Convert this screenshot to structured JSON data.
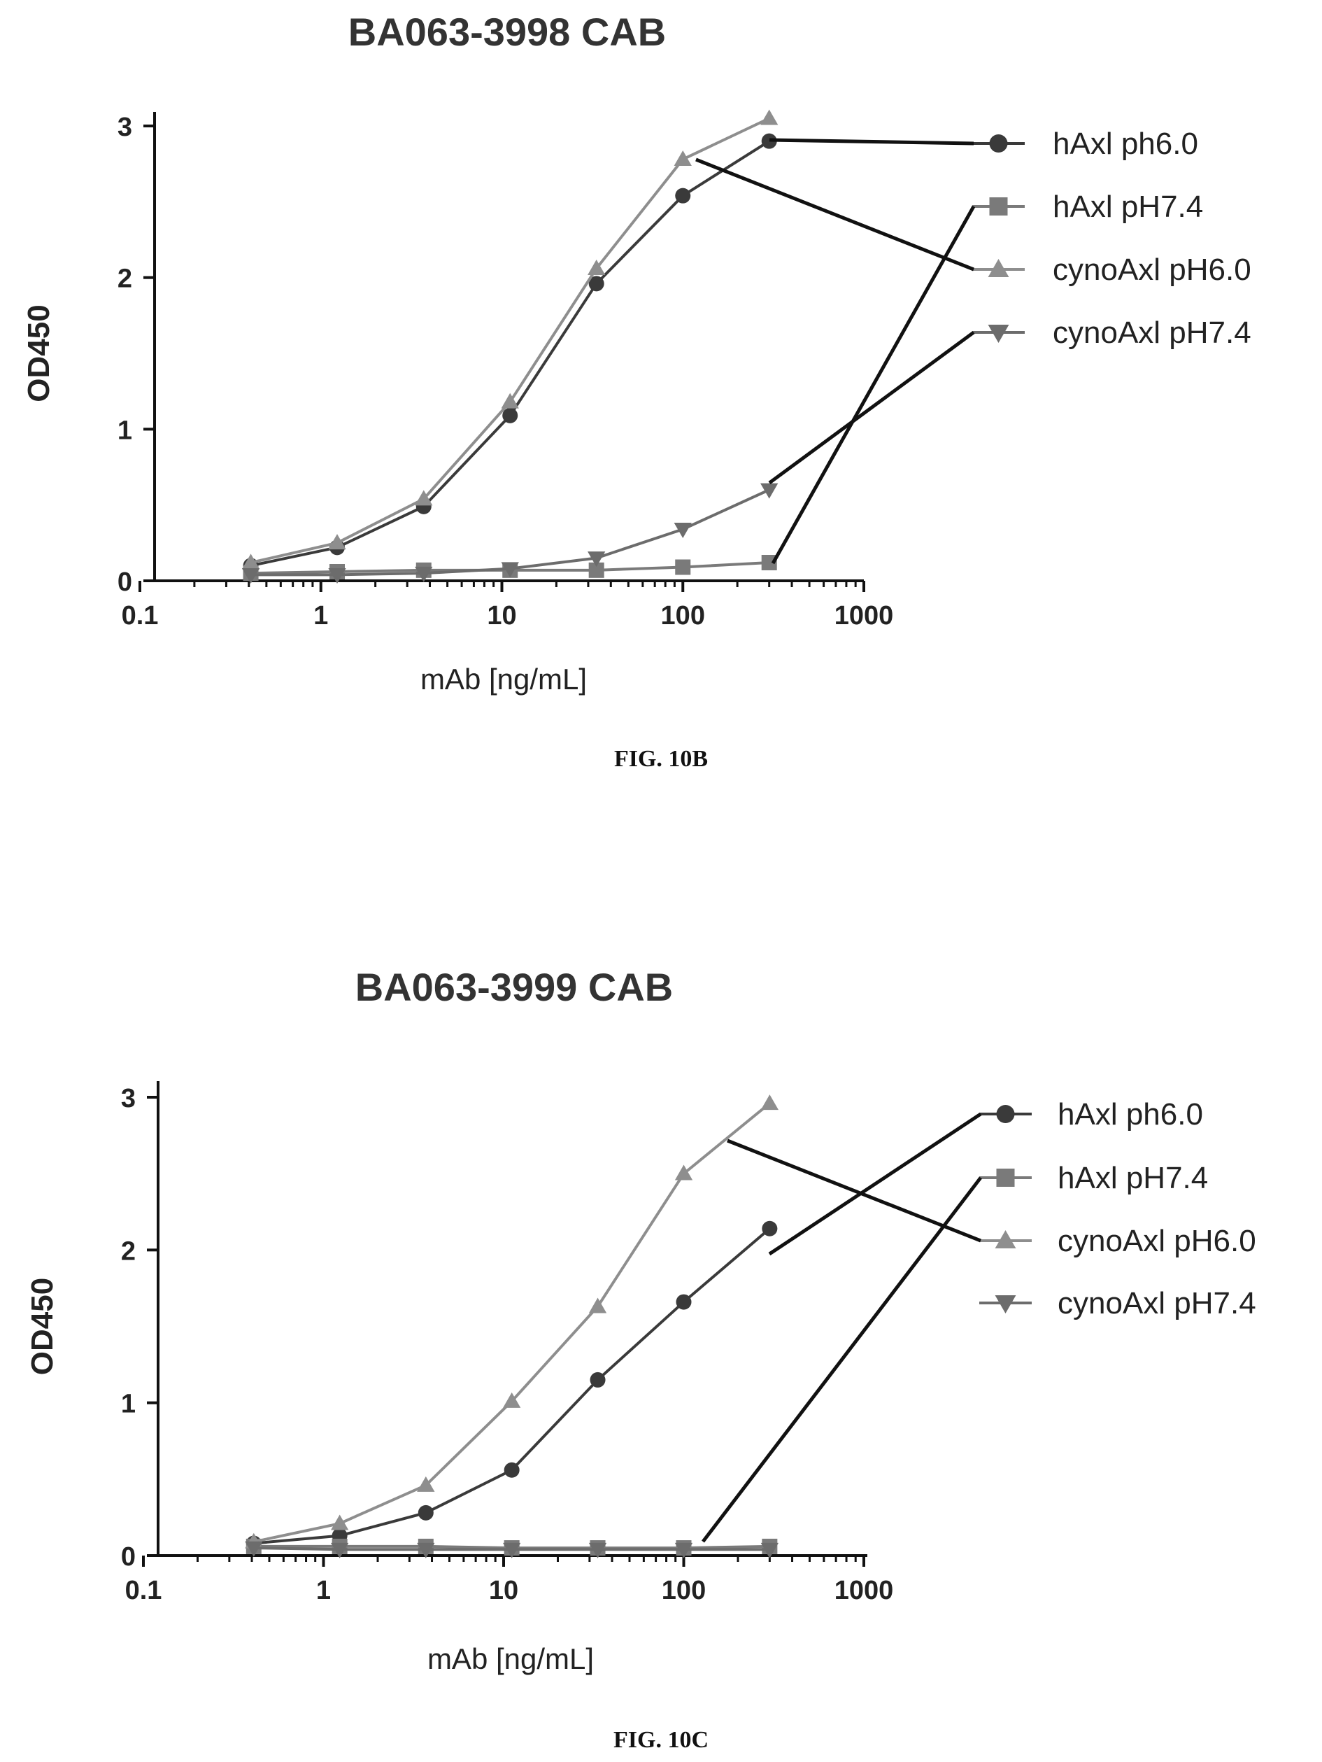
{
  "colors": {
    "hAxl_ph6": "#3a3a3a",
    "hAxl_pH74": "#7a7a7a",
    "cyno_pH6": "#8e8e8e",
    "cyno_pH74": "#6c6c6c",
    "axis": "#111111",
    "leader": "#111111"
  },
  "chart_data": [
    {
      "type": "line",
      "title": "BA063-3998 CAB",
      "xlabel": "mAb [ng/mL]",
      "ylabel": "OD450",
      "xscale": "log",
      "xlim": [
        0.1,
        1000
      ],
      "ylim": [
        0,
        3
      ],
      "x_ticks": [
        "0.1",
        "1",
        "10",
        "100",
        "1000"
      ],
      "y_ticks": [
        "0",
        "1",
        "2",
        "3"
      ],
      "grid": false,
      "legend_placement": "right",
      "caption": "FIG. 10B",
      "x": [
        0.41,
        1.23,
        3.7,
        11.1,
        33.3,
        100,
        300
      ],
      "series": [
        {
          "name": "hAxl ph6.0",
          "marker": "circle",
          "values": [
            0.1,
            0.22,
            0.49,
            1.09,
            1.96,
            2.54,
            2.9
          ]
        },
        {
          "name": "hAxl pH7.4",
          "marker": "square",
          "values": [
            0.05,
            0.06,
            0.07,
            0.07,
            0.07,
            0.09,
            0.12
          ]
        },
        {
          "name": "cynoAxl pH6.0",
          "marker": "triangle-up",
          "values": [
            0.12,
            0.25,
            0.54,
            1.18,
            2.06,
            2.78,
            3.05
          ]
        },
        {
          "name": "cynoAxl pH7.4",
          "marker": "triangle-down",
          "values": [
            0.04,
            0.04,
            0.05,
            0.08,
            0.15,
            0.34,
            0.6
          ]
        }
      ]
    },
    {
      "type": "line",
      "title": "BA063-3999 CAB",
      "xlabel": "mAb [ng/mL]",
      "ylabel": "OD450",
      "xscale": "log",
      "xlim": [
        0.1,
        1000
      ],
      "ylim": [
        0,
        3
      ],
      "x_ticks": [
        "0.1",
        "1",
        "10",
        "100",
        "1000"
      ],
      "y_ticks": [
        "0",
        "1",
        "2",
        "3"
      ],
      "grid": false,
      "legend_placement": "right",
      "caption": "FIG. 10C",
      "x": [
        0.41,
        1.23,
        3.7,
        11.1,
        33.3,
        100,
        300
      ],
      "series": [
        {
          "name": "hAxl ph6.0",
          "marker": "circle",
          "values": [
            0.08,
            0.13,
            0.28,
            0.56,
            1.15,
            1.66,
            2.14
          ]
        },
        {
          "name": "hAxl pH7.4",
          "marker": "square",
          "values": [
            0.06,
            0.06,
            0.06,
            0.05,
            0.05,
            0.05,
            0.06
          ]
        },
        {
          "name": "cynoAxl pH6.0",
          "marker": "triangle-up",
          "values": [
            0.09,
            0.21,
            0.46,
            1.01,
            1.63,
            2.5,
            2.96
          ]
        },
        {
          "name": "cynoAxl pH7.4",
          "marker": "triangle-down",
          "values": [
            0.05,
            0.04,
            0.04,
            0.04,
            0.04,
            0.04,
            0.04
          ]
        }
      ]
    }
  ]
}
